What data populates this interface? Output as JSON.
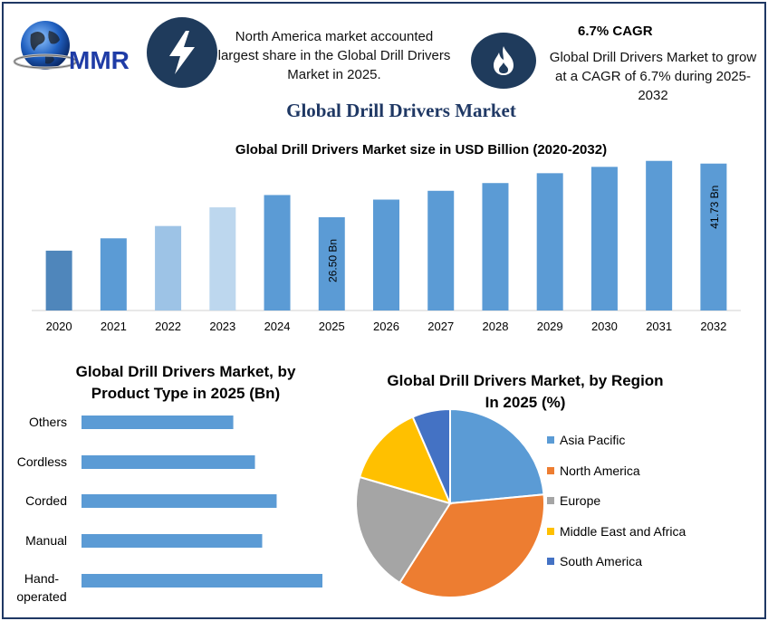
{
  "header": {
    "logo_text": "MMR",
    "info1_text": "North America market accounted largest share in the Global Drill Drivers Market in 2025.",
    "info2_title": "6.7% CAGR",
    "info2_text": "Global Drill Drivers Market to grow at a CAGR of 6.7% during 2025-2032"
  },
  "main_title": "Global Drill Drivers Market",
  "colors": {
    "navy": "#1f3b5c",
    "bar_blue": "#5b9bd5",
    "asia_pacific": "#5b9bd5",
    "north_america": "#ed7d31",
    "europe": "#a5a5a5",
    "mea": "#ffc000",
    "south_america": "#4472c4"
  },
  "chart_data": [
    {
      "type": "bar",
      "title": "Global Drill Drivers Market size in USD Billion (2020-2032)",
      "categories": [
        "2020",
        "2021",
        "2022",
        "2023",
        "2024",
        "2025",
        "2026",
        "2027",
        "2028",
        "2029",
        "2030",
        "2031",
        "2032"
      ],
      "values": [
        17.0,
        20.5,
        24.0,
        29.3,
        32.8,
        26.5,
        31.5,
        34.0,
        36.2,
        39.0,
        40.8,
        42.5,
        41.73
      ],
      "bar_colors": [
        "#4f86bb",
        "#5b9bd5",
        "#9dc3e6",
        "#bdd7ee",
        "#5b9bd5",
        "#5b9bd5",
        "#5b9bd5",
        "#5b9bd5",
        "#5b9bd5",
        "#5b9bd5",
        "#5b9bd5",
        "#5b9bd5",
        "#5b9bd5"
      ],
      "data_labels": {
        "2025": "26.50 Bn",
        "2032": "41.73 Bn"
      },
      "ylim": [
        0,
        45
      ]
    },
    {
      "type": "bar",
      "orientation": "horizontal",
      "title_line1": "Global Drill Drivers Market, by",
      "title_line2": "Product Type in 2025 (Bn)",
      "categories": [
        "Others",
        "Cordless",
        "Corded",
        "Manual",
        "Hand-operated"
      ],
      "category_lines": [
        [
          "Others"
        ],
        [
          "Cordless"
        ],
        [
          "Corded"
        ],
        [
          "Manual"
        ],
        [
          "Hand-",
          "operated"
        ]
      ],
      "values": [
        6.3,
        7.2,
        8.1,
        7.5,
        10.0
      ],
      "xlim": [
        0,
        10.5
      ]
    },
    {
      "type": "pie",
      "title_line1": "Global Drill Drivers Market, by Region",
      "title_line2": "In 2025 (%)",
      "labels": [
        "Asia Pacific",
        "North America",
        "Europe",
        "Middle East and Africa",
        "South America"
      ],
      "values": [
        23.5,
        35.5,
        20.5,
        14.0,
        6.5
      ],
      "colors": [
        "#5b9bd5",
        "#ed7d31",
        "#a5a5a5",
        "#ffc000",
        "#4472c4"
      ]
    }
  ]
}
